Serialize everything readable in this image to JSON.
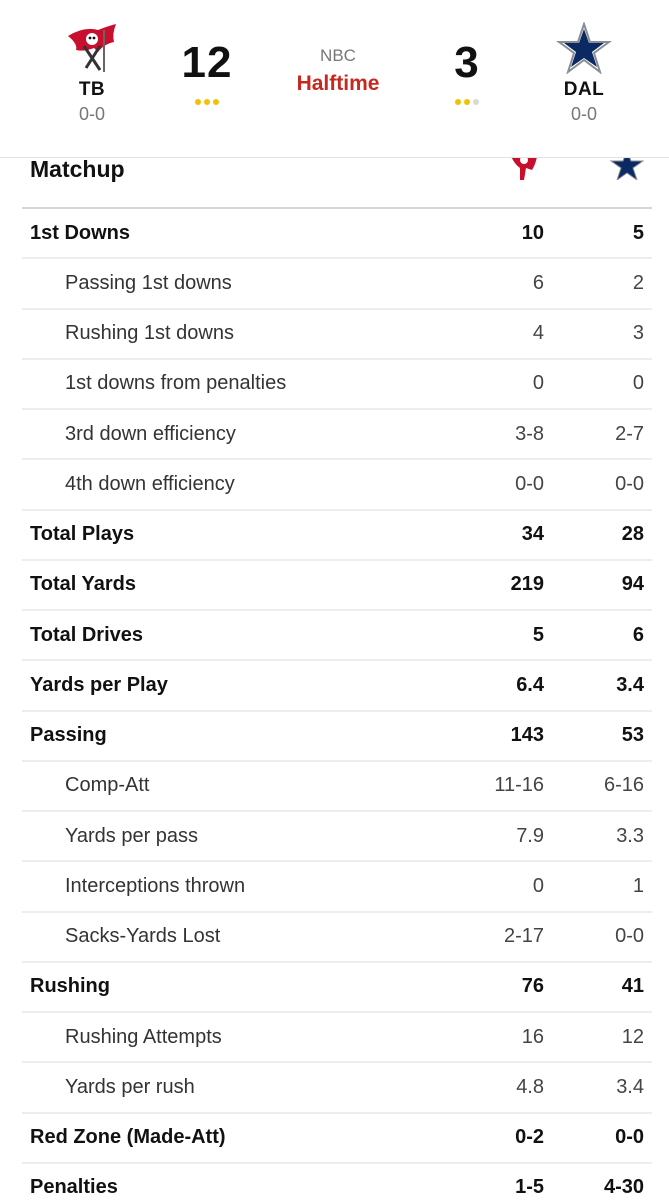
{
  "scoreboard": {
    "away": {
      "abbr": "TB",
      "record": "0-0",
      "score": "12",
      "timeouts_remaining": 3,
      "logo_icon": "buccaneers-flag-icon",
      "color": "#c8102e"
    },
    "home": {
      "abbr": "DAL",
      "record": "0-0",
      "score": "3",
      "timeouts_remaining": 2,
      "logo_icon": "cowboys-star-icon",
      "color": "#041e42"
    },
    "network": "NBC",
    "status": "Halftime",
    "timeout_color": "#f2c200",
    "timeout_used_color": "#d9d9d9",
    "status_color": "#c8281f"
  },
  "matchup": {
    "title": "Matchup",
    "rows": [
      {
        "label": "1st Downs",
        "away": "10",
        "home": "5",
        "kind": "main"
      },
      {
        "label": "Passing 1st downs",
        "away": "6",
        "home": "2",
        "kind": "sub"
      },
      {
        "label": "Rushing 1st downs",
        "away": "4",
        "home": "3",
        "kind": "sub"
      },
      {
        "label": "1st downs from penalties",
        "away": "0",
        "home": "0",
        "kind": "sub"
      },
      {
        "label": "3rd down efficiency",
        "away": "3-8",
        "home": "2-7",
        "kind": "sub"
      },
      {
        "label": "4th down efficiency",
        "away": "0-0",
        "home": "0-0",
        "kind": "sub"
      },
      {
        "label": "Total Plays",
        "away": "34",
        "home": "28",
        "kind": "main"
      },
      {
        "label": "Total Yards",
        "away": "219",
        "home": "94",
        "kind": "main"
      },
      {
        "label": "Total Drives",
        "away": "5",
        "home": "6",
        "kind": "main"
      },
      {
        "label": "Yards per Play",
        "away": "6.4",
        "home": "3.4",
        "kind": "main"
      },
      {
        "label": "Passing",
        "away": "143",
        "home": "53",
        "kind": "main"
      },
      {
        "label": "Comp-Att",
        "away": "11-16",
        "home": "6-16",
        "kind": "sub"
      },
      {
        "label": "Yards per pass",
        "away": "7.9",
        "home": "3.3",
        "kind": "sub"
      },
      {
        "label": "Interceptions thrown",
        "away": "0",
        "home": "1",
        "kind": "sub"
      },
      {
        "label": "Sacks-Yards Lost",
        "away": "2-17",
        "home": "0-0",
        "kind": "sub"
      },
      {
        "label": "Rushing",
        "away": "76",
        "home": "41",
        "kind": "main"
      },
      {
        "label": "Rushing Attempts",
        "away": "16",
        "home": "12",
        "kind": "sub"
      },
      {
        "label": "Yards per rush",
        "away": "4.8",
        "home": "3.4",
        "kind": "sub"
      },
      {
        "label": "Red Zone (Made-Att)",
        "away": "0-2",
        "home": "0-0",
        "kind": "main"
      },
      {
        "label": "Penalties",
        "away": "1-5",
        "home": "4-30",
        "kind": "main"
      }
    ]
  }
}
